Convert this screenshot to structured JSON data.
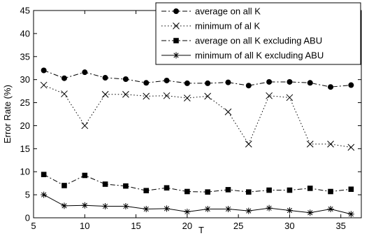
{
  "chart_data": {
    "type": "line",
    "xlabel": "T",
    "ylabel": "Error Rate (%)",
    "xlim": [
      5,
      37
    ],
    "ylim": [
      0,
      45
    ],
    "x_ticks": [
      5,
      10,
      15,
      20,
      25,
      30,
      35
    ],
    "y_ticks": [
      0,
      5,
      10,
      15,
      20,
      25,
      30,
      35,
      40,
      45
    ],
    "grid": false,
    "legend_position": "top-right",
    "x": [
      6,
      8,
      10,
      12,
      14,
      16,
      18,
      20,
      22,
      24,
      26,
      28,
      30,
      32,
      34,
      36
    ],
    "series": [
      {
        "name": "average on all K",
        "line_style": "dashdot",
        "marker": "circle",
        "values": [
          32.0,
          30.3,
          31.6,
          30.4,
          30.1,
          29.3,
          29.8,
          29.2,
          29.2,
          29.4,
          28.7,
          29.5,
          29.5,
          29.3,
          28.4,
          28.8
        ]
      },
      {
        "name": "minimum of al K",
        "line_style": "dotted",
        "marker": "x",
        "values": [
          28.8,
          26.9,
          20.0,
          26.8,
          26.8,
          26.4,
          26.5,
          26.0,
          26.4,
          23.0,
          16.0,
          26.5,
          26.1,
          16.0,
          16.0,
          15.3
        ]
      },
      {
        "name": "average on all K excluding ABU",
        "line_style": "dashdot",
        "marker": "square",
        "values": [
          9.4,
          7.0,
          9.2,
          7.3,
          6.9,
          5.9,
          6.5,
          5.7,
          5.6,
          6.1,
          5.6,
          6.0,
          6.0,
          6.4,
          5.7,
          6.2
        ]
      },
      {
        "name": "minimum of all K excluding ABU",
        "line_style": "solid",
        "marker": "asterisk",
        "values": [
          5.0,
          2.6,
          2.7,
          2.5,
          2.5,
          1.9,
          2.0,
          1.3,
          1.9,
          1.9,
          1.5,
          2.1,
          1.6,
          1.1,
          1.9,
          0.8
        ]
      }
    ]
  }
}
